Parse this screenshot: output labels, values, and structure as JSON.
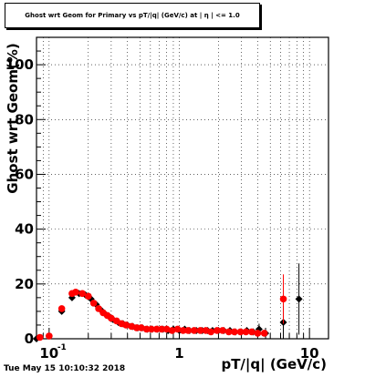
{
  "chart_data": {
    "type": "scatter",
    "title": "Ghost wrt Geom for Primary vs pT/|q| (GeV/c) at | η | <= 1.0",
    "xlabel": "pT/|q| (GeV/c)",
    "ylabel": "Ghost wrt Geom(%)",
    "x_scale": "log",
    "xlim": [
      0.08,
      14
    ],
    "ylim": [
      0,
      110
    ],
    "y_ticks": [
      "0",
      "20",
      "40",
      "60",
      "80",
      "100"
    ],
    "x_ticks": [
      {
        "value": 0.1,
        "label": "10",
        "exp": "-1"
      },
      {
        "value": 1,
        "label": "1",
        "exp": ""
      },
      {
        "value": 10,
        "label": "10",
        "exp": ""
      }
    ],
    "grid": true,
    "series": [
      {
        "marker": "diamond",
        "color": "#000000",
        "x": [
          0.08,
          0.1,
          0.125,
          0.15,
          0.17,
          0.19,
          0.21,
          0.23,
          0.25,
          0.27,
          0.29,
          0.31,
          0.34,
          0.37,
          0.4,
          0.44,
          0.48,
          0.52,
          0.57,
          0.62,
          0.68,
          0.75,
          0.82,
          0.9,
          1.0,
          1.1,
          1.2,
          1.35,
          1.5,
          1.65,
          1.8,
          2.0,
          2.2,
          2.45,
          2.7,
          3.0,
          3.3,
          3.7,
          4.1,
          4.6,
          6.3,
          8.3
        ],
        "y": [
          0,
          1,
          10,
          15,
          16.5,
          16,
          14.5,
          12.5,
          10.5,
          9,
          8,
          7,
          6,
          5.5,
          5,
          4.5,
          4,
          4,
          3.5,
          3.5,
          3.5,
          3.5,
          3,
          3.5,
          3,
          3.5,
          3,
          3,
          3,
          3,
          3,
          3,
          3,
          3,
          2.5,
          2.5,
          3,
          2.5,
          3.5,
          2,
          6,
          14.5
        ],
        "err": [
          0,
          0,
          1,
          1,
          1,
          0.8,
          0.8,
          0.8,
          0.7,
          0.7,
          0.6,
          0.6,
          0.5,
          0.5,
          0.5,
          0.5,
          0.5,
          0.5,
          0.5,
          0.5,
          0.5,
          0.5,
          0.5,
          0.5,
          0.5,
          0.5,
          0.5,
          0.5,
          0.5,
          0.5,
          0.5,
          0.5,
          1,
          1,
          1,
          1,
          1,
          1,
          2,
          2,
          6,
          13
        ]
      },
      {
        "marker": "circle",
        "color": "#ff0000",
        "x": [
          0.085,
          0.1,
          0.125,
          0.15,
          0.16,
          0.18,
          0.2,
          0.22,
          0.24,
          0.26,
          0.28,
          0.3,
          0.33,
          0.36,
          0.39,
          0.43,
          0.47,
          0.51,
          0.56,
          0.61,
          0.67,
          0.73,
          0.8,
          0.88,
          0.97,
          1.07,
          1.17,
          1.3,
          1.45,
          1.6,
          1.75,
          1.95,
          2.15,
          2.4,
          2.65,
          2.95,
          3.25,
          3.6,
          4.0,
          4.5,
          6.3
        ],
        "y": [
          0.5,
          1,
          11,
          16.5,
          17,
          16.5,
          15.5,
          13,
          11,
          9.5,
          8.5,
          7.5,
          6.5,
          5.5,
          5,
          4.5,
          4,
          4,
          3.5,
          3.5,
          3.5,
          3.5,
          3.5,
          3,
          3.5,
          3,
          3,
          3,
          3,
          3,
          2.5,
          3,
          3,
          2.5,
          2.5,
          2.5,
          2.5,
          2.5,
          2,
          2,
          14.5
        ],
        "err": [
          0,
          0,
          1,
          1,
          1,
          0.8,
          0.8,
          0.8,
          0.7,
          0.7,
          0.6,
          0.6,
          0.5,
          0.5,
          0.5,
          0.5,
          0.5,
          0.5,
          0.5,
          0.5,
          0.5,
          0.5,
          0.5,
          0.5,
          0.5,
          0.5,
          0.5,
          0.5,
          0.5,
          0.5,
          0.5,
          0.5,
          1,
          1,
          1,
          1,
          1,
          1,
          1,
          1,
          9
        ]
      }
    ]
  },
  "footer": "Tue May 15 10:10:32 2018"
}
